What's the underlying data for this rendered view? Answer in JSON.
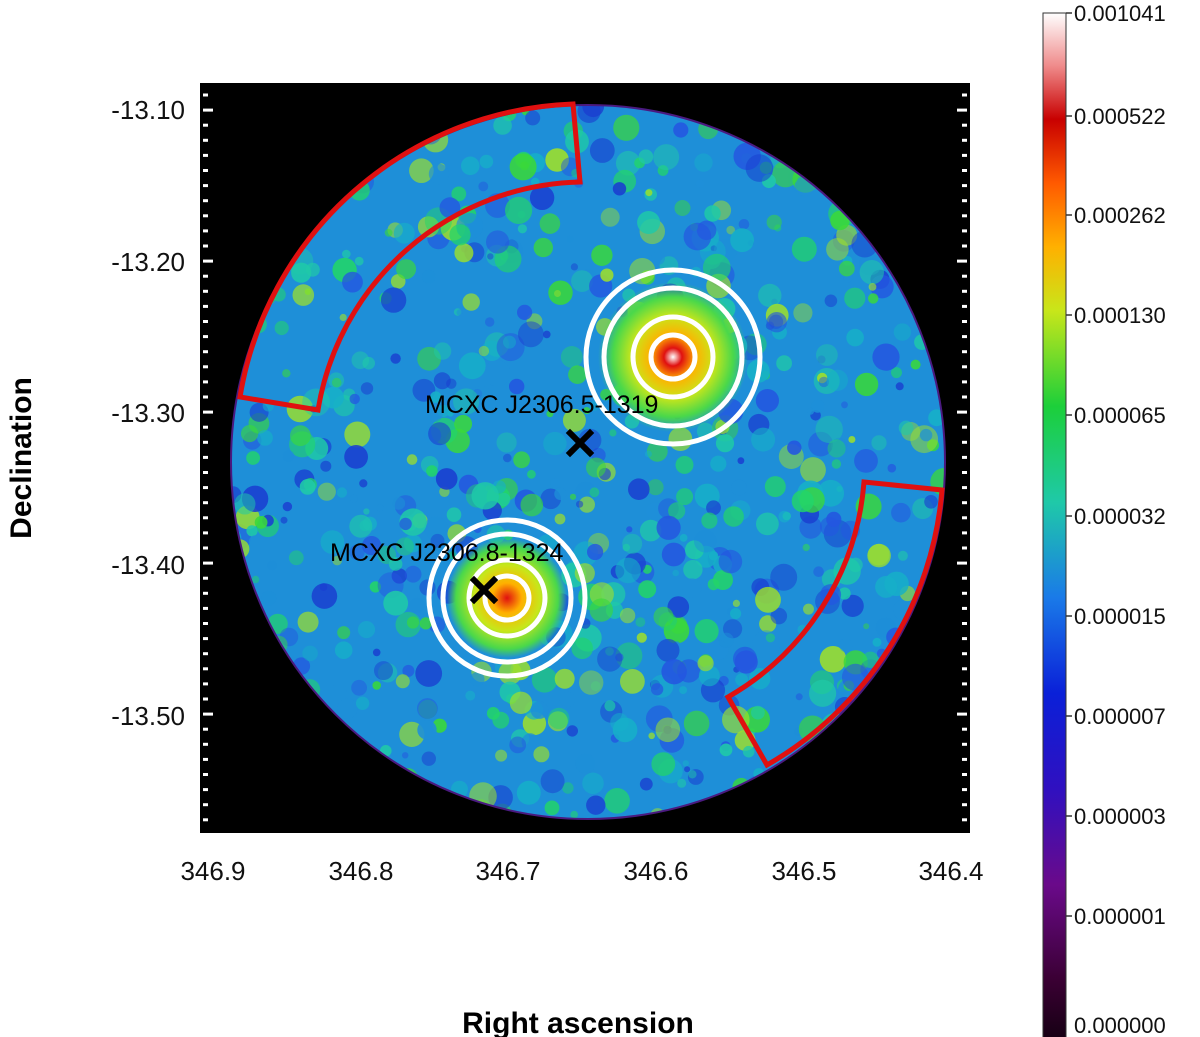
{
  "figure": {
    "xlabel": "Right ascension",
    "ylabel": "Declination",
    "x_ticks": [
      "346.9",
      "346.8",
      "346.7",
      "346.6",
      "346.5",
      "346.4"
    ],
    "y_ticks": [
      "-13.10",
      "-13.20",
      "-13.30",
      "-13.40",
      "-13.50"
    ],
    "colorbar_ticks": [
      "0.001041",
      "0.000522",
      "0.000262",
      "0.000130",
      "0.000065",
      "0.000032",
      "0.000015",
      "0.000007",
      "0.000003",
      "0.000001",
      "0.000000"
    ],
    "sources": [
      {
        "name": "MCXC J2306.5-1319",
        "ra": 346.65,
        "dec": -13.317
      },
      {
        "name": "MCXC J2306.8-1324",
        "ra": 346.715,
        "dec": -13.41
      }
    ],
    "colors": {
      "background_region": "#e01010",
      "annulus": "#ffffff",
      "marker": "#000000"
    }
  }
}
